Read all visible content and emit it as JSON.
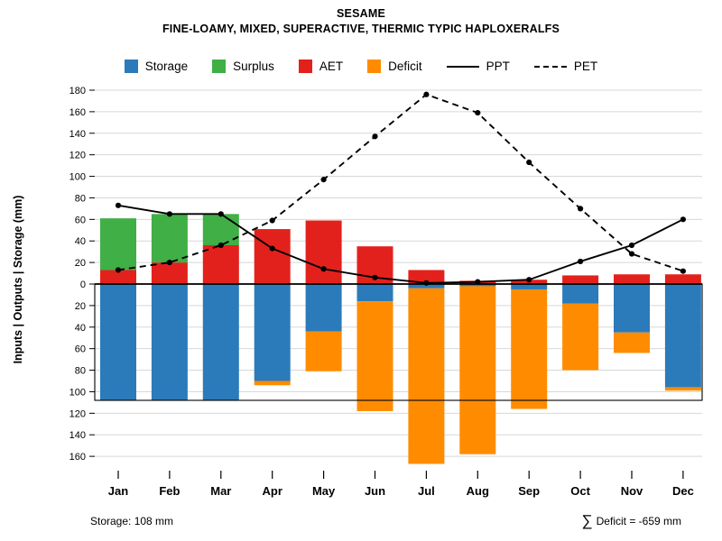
{
  "header": {
    "title": "SESAME",
    "subtitle": "FINE-LOAMY, MIXED, SUPERACTIVE, THERMIC TYPIC HAPLOXERALFS"
  },
  "legend": [
    {
      "label": "Storage",
      "color": "#2b7bba",
      "type": "box"
    },
    {
      "label": "Surplus",
      "color": "#3faf46",
      "type": "box"
    },
    {
      "label": "AET",
      "color": "#e3211c",
      "type": "box"
    },
    {
      "label": "Deficit",
      "color": "#ff8c00",
      "type": "box"
    },
    {
      "label": "PPT",
      "color": "#000000",
      "type": "line-solid"
    },
    {
      "label": "PET",
      "color": "#000000",
      "type": "line-dashed"
    }
  ],
  "footer": {
    "storage_note": "Storage: 108 mm",
    "deficit_sigma": "∑",
    "deficit_note": "Deficit = -659 mm"
  },
  "chart_data": {
    "type": "bar",
    "subtype": "diverging stacked bars with overlay lines (monthly water balance)",
    "categories": [
      "Jan",
      "Feb",
      "Mar",
      "Apr",
      "May",
      "Jun",
      "Jul",
      "Aug",
      "Sep",
      "Oct",
      "Nov",
      "Dec"
    ],
    "ylabel": "Inputs | Outputs | Storage  (mm)",
    "ylim": [
      -170,
      180
    ],
    "ytick_values": [
      180,
      160,
      140,
      120,
      100,
      80,
      60,
      40,
      20,
      0,
      -20,
      -40,
      -60,
      -80,
      -100,
      -120,
      -140,
      -160
    ],
    "grid": true,
    "legend_position": "top",
    "storage_capacity_line": -108,
    "bar_series": [
      {
        "name": "AET",
        "color": "#e3211c",
        "direction": "up",
        "stack_order": 1,
        "values": [
          13,
          20,
          36,
          51,
          59,
          35,
          13,
          3,
          4,
          8,
          9,
          9
        ]
      },
      {
        "name": "Surplus",
        "color": "#3faf46",
        "direction": "up",
        "stack_order": 2,
        "values": [
          48,
          45,
          29,
          0,
          0,
          0,
          0,
          0,
          0,
          0,
          0,
          0
        ]
      },
      {
        "name": "Storage",
        "color": "#2b7bba",
        "direction": "down",
        "stack_order": 1,
        "values": [
          108,
          108,
          108,
          90,
          44,
          16,
          4,
          2,
          5,
          18,
          45,
          96
        ]
      },
      {
        "name": "Deficit",
        "color": "#ff8c00",
        "direction": "down",
        "stack_order": 2,
        "values": [
          0,
          0,
          0,
          4,
          37,
          102,
          163,
          156,
          111,
          62,
          19,
          3
        ]
      }
    ],
    "line_series": [
      {
        "name": "PPT",
        "style": "solid",
        "color": "#000000",
        "values": [
          73,
          65,
          65,
          33,
          14,
          6,
          1,
          2,
          4,
          21,
          36,
          60
        ]
      },
      {
        "name": "PET",
        "style": "dashed",
        "color": "#000000",
        "values": [
          13,
          20,
          36,
          59,
          97,
          137,
          176,
          159,
          113,
          70,
          28,
          12
        ]
      }
    ]
  }
}
